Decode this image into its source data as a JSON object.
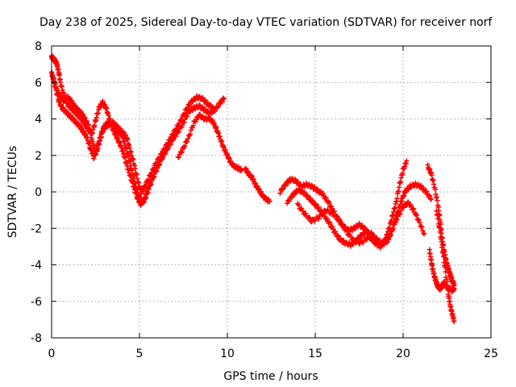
{
  "colors": {
    "series": "#ff0000",
    "axis": "#000000",
    "grid": "#a0a0a0",
    "background": "#ffffff"
  },
  "chart_data": {
    "type": "scatter",
    "title": "Day 238 of 2025, Sidereal Day-to-day VTEC variation (SDTVAR) for receiver norf",
    "xlabel": "GPS time / hours",
    "ylabel": "SDTVAR / TECUs",
    "xlim": [
      0,
      25
    ],
    "ylim": [
      -8,
      8
    ],
    "xticks": [
      0,
      5,
      10,
      15,
      20,
      25
    ],
    "yticks": [
      -8,
      -6,
      -4,
      -2,
      0,
      2,
      4,
      6,
      8
    ],
    "grid": true,
    "marker": "+",
    "series": [
      {
        "name": "SDTVAR",
        "note": "multiple overlapping satellite tracks; values approximated from the plot",
        "tracks": [
          {
            "x": [
              0.0,
              0.1,
              0.2,
              0.3,
              0.4,
              0.5,
              0.7,
              0.9,
              1.1,
              1.3,
              1.5,
              1.7,
              1.9,
              2.1,
              2.3,
              2.5,
              2.7,
              2.9,
              3.1,
              3.3,
              3.5,
              3.7,
              3.9,
              4.1,
              4.3,
              4.5,
              4.7,
              4.9,
              5.1,
              5.3,
              5.5,
              5.8,
              6.1,
              6.4,
              6.7,
              7.0
            ],
            "y": [
              7.4,
              7.3,
              7.2,
              7.0,
              6.6,
              6.0,
              5.3,
              4.8,
              4.6,
              4.4,
              4.2,
              4.0,
              3.7,
              3.4,
              3.2,
              3.9,
              4.6,
              4.9,
              4.6,
              4.0,
              3.4,
              3.0,
              2.6,
              2.1,
              1.4,
              0.8,
              0.2,
              -0.4,
              -0.7,
              -0.3,
              0.3,
              0.9,
              1.5,
              2.1,
              2.6,
              3.1
            ]
          },
          {
            "x": [
              0.0,
              0.1,
              0.2,
              0.4,
              0.6,
              0.8,
              1.0,
              1.2,
              1.4,
              1.6,
              1.8,
              2.0,
              2.2,
              2.4,
              2.6,
              2.8,
              3.0,
              3.2,
              3.4,
              3.6,
              3.8,
              4.0,
              4.2,
              4.4,
              4.6,
              4.8,
              5.0,
              5.2,
              5.4,
              5.7,
              6.0,
              6.3,
              6.6,
              6.9,
              7.2,
              7.5,
              7.8,
              8.1,
              8.4,
              8.7,
              9.0,
              9.3,
              9.6,
              9.8
            ],
            "y": [
              6.5,
              6.2,
              5.8,
              5.0,
              4.6,
              4.4,
              4.2,
              4.0,
              3.8,
              3.6,
              3.3,
              3.0,
              2.4,
              1.9,
              2.3,
              3.0,
              3.6,
              3.8,
              3.7,
              3.5,
              3.3,
              3.1,
              2.5,
              1.8,
              1.0,
              0.3,
              -0.3,
              -0.6,
              -0.2,
              0.6,
              1.3,
              1.9,
              2.4,
              2.9,
              3.3,
              3.8,
              4.4,
              4.6,
              4.7,
              4.5,
              4.3,
              4.5,
              4.9,
              5.1
            ]
          },
          {
            "x": [
              0.1,
              0.3,
              0.5,
              0.7,
              0.9,
              1.1,
              1.3,
              1.5,
              1.7,
              1.9,
              2.1,
              2.3,
              2.5,
              2.7,
              2.9,
              3.1,
              3.3,
              3.5,
              3.7,
              3.9,
              4.1,
              4.3,
              4.5,
              4.7,
              4.9,
              5.1,
              5.3,
              5.6,
              5.9,
              6.2,
              6.5,
              6.8,
              7.1,
              7.4,
              7.7,
              8.0,
              8.3,
              8.6,
              8.9,
              9.2
            ],
            "y": [
              6.2,
              5.6,
              5.2,
              5.0,
              5.2,
              5.0,
              4.7,
              4.5,
              4.3,
              4.0,
              3.6,
              2.8,
              2.2,
              2.8,
              3.4,
              3.6,
              3.7,
              3.8,
              3.6,
              3.4,
              3.2,
              2.9,
              2.2,
              1.5,
              0.6,
              0.0,
              0.3,
              0.9,
              1.5,
              2.0,
              2.5,
              3.0,
              3.5,
              4.0,
              4.6,
              5.0,
              5.2,
              5.1,
              4.8,
              4.6
            ]
          },
          {
            "x": [
              7.2,
              7.5,
              7.8,
              8.1,
              8.4,
              8.7,
              9.0,
              9.2,
              9.4,
              9.6,
              9.8,
              10.0,
              10.2,
              10.4,
              10.6,
              10.8
            ],
            "y": [
              1.9,
              2.4,
              3.0,
              3.8,
              4.2,
              4.0,
              4.0,
              3.8,
              3.4,
              2.9,
              2.4,
              2.0,
              1.6,
              1.4,
              1.3,
              1.2
            ]
          },
          {
            "x": [
              11.0,
              11.2,
              11.4,
              11.6,
              11.8,
              12.0,
              12.2,
              12.4
            ],
            "y": [
              1.3,
              1.0,
              0.8,
              0.4,
              0.1,
              -0.2,
              -0.4,
              -0.5
            ]
          },
          {
            "x": [
              13.0,
              13.3,
              13.6,
              13.9,
              14.2,
              14.5,
              14.8,
              15.1,
              15.4,
              15.7,
              16.0,
              16.3,
              16.6,
              16.9,
              17.2,
              17.5,
              17.8,
              18.1,
              18.4,
              18.7,
              19.0,
              19.2,
              19.4,
              19.6,
              19.8,
              20.0,
              20.2
            ],
            "y": [
              0.0,
              0.4,
              0.7,
              0.6,
              0.3,
              0.4,
              0.3,
              0.1,
              -0.1,
              -0.5,
              -1.0,
              -1.5,
              -1.9,
              -2.1,
              -2.0,
              -1.8,
              -2.0,
              -2.4,
              -2.8,
              -3.0,
              -2.6,
              -2.0,
              -1.3,
              -0.6,
              0.4,
              1.2,
              1.7
            ]
          },
          {
            "x": [
              13.4,
              13.7,
              14.0,
              14.3,
              14.6,
              14.9,
              15.2,
              15.5,
              15.8,
              16.1,
              16.4,
              16.7,
              17.0,
              17.3,
              17.6,
              17.9,
              18.2,
              18.5,
              18.8,
              19.1,
              19.3,
              19.5,
              19.7,
              19.9,
              20.1,
              20.4,
              20.7,
              21.0,
              21.3,
              21.6
            ],
            "y": [
              -0.6,
              -0.2,
              0.1,
              0.0,
              -0.3,
              -0.6,
              -0.9,
              -1.3,
              -1.7,
              -2.2,
              -2.6,
              -2.8,
              -2.9,
              -2.7,
              -2.4,
              -2.2,
              -2.3,
              -2.6,
              -2.9,
              -2.7,
              -2.3,
              -1.7,
              -1.1,
              -0.5,
              0.0,
              0.3,
              0.4,
              0.3,
              0.0,
              -0.4
            ]
          },
          {
            "x": [
              14.0,
              14.4,
              14.8,
              15.2,
              15.6,
              16.0,
              16.4,
              16.8,
              17.2,
              17.6,
              18.0,
              18.4,
              18.8,
              19.2,
              19.6,
              20.0,
              20.3,
              20.6,
              20.9,
              21.2
            ],
            "y": [
              -0.7,
              -1.2,
              -1.6,
              -1.4,
              -1.0,
              -1.2,
              -1.6,
              -2.2,
              -2.7,
              -2.8,
              -2.5,
              -2.6,
              -2.8,
              -2.4,
              -1.6,
              -0.8,
              -0.6,
              -1.0,
              -1.6,
              -2.3
            ]
          },
          {
            "x": [
              21.4,
              21.6,
              21.8,
              22.0,
              22.1,
              22.2,
              22.3,
              22.4,
              22.5,
              22.6,
              22.7,
              22.8,
              22.9
            ],
            "y": [
              1.4,
              1.0,
              0.2,
              -0.8,
              -1.6,
              -2.4,
              -3.1,
              -3.6,
              -4.0,
              -4.3,
              -4.6,
              -4.9,
              -5.1
            ]
          },
          {
            "x": [
              21.5,
              21.6,
              21.7,
              21.8,
              21.9,
              22.0,
              22.1,
              22.2,
              22.3,
              22.4,
              22.6,
              22.8,
              22.9
            ],
            "y": [
              -3.2,
              -3.8,
              -4.3,
              -4.7,
              -5.0,
              -5.2,
              -5.3,
              -5.2,
              -5.0,
              -5.1,
              -5.3,
              -5.4,
              -5.3
            ]
          },
          {
            "x": [
              21.9,
              22.1,
              22.3,
              22.5,
              22.6,
              22.7,
              22.8,
              22.9
            ],
            "y": [
              -1.0,
              -2.2,
              -3.6,
              -5.0,
              -5.8,
              -6.3,
              -6.7,
              -7.1
            ]
          }
        ]
      }
    ]
  }
}
